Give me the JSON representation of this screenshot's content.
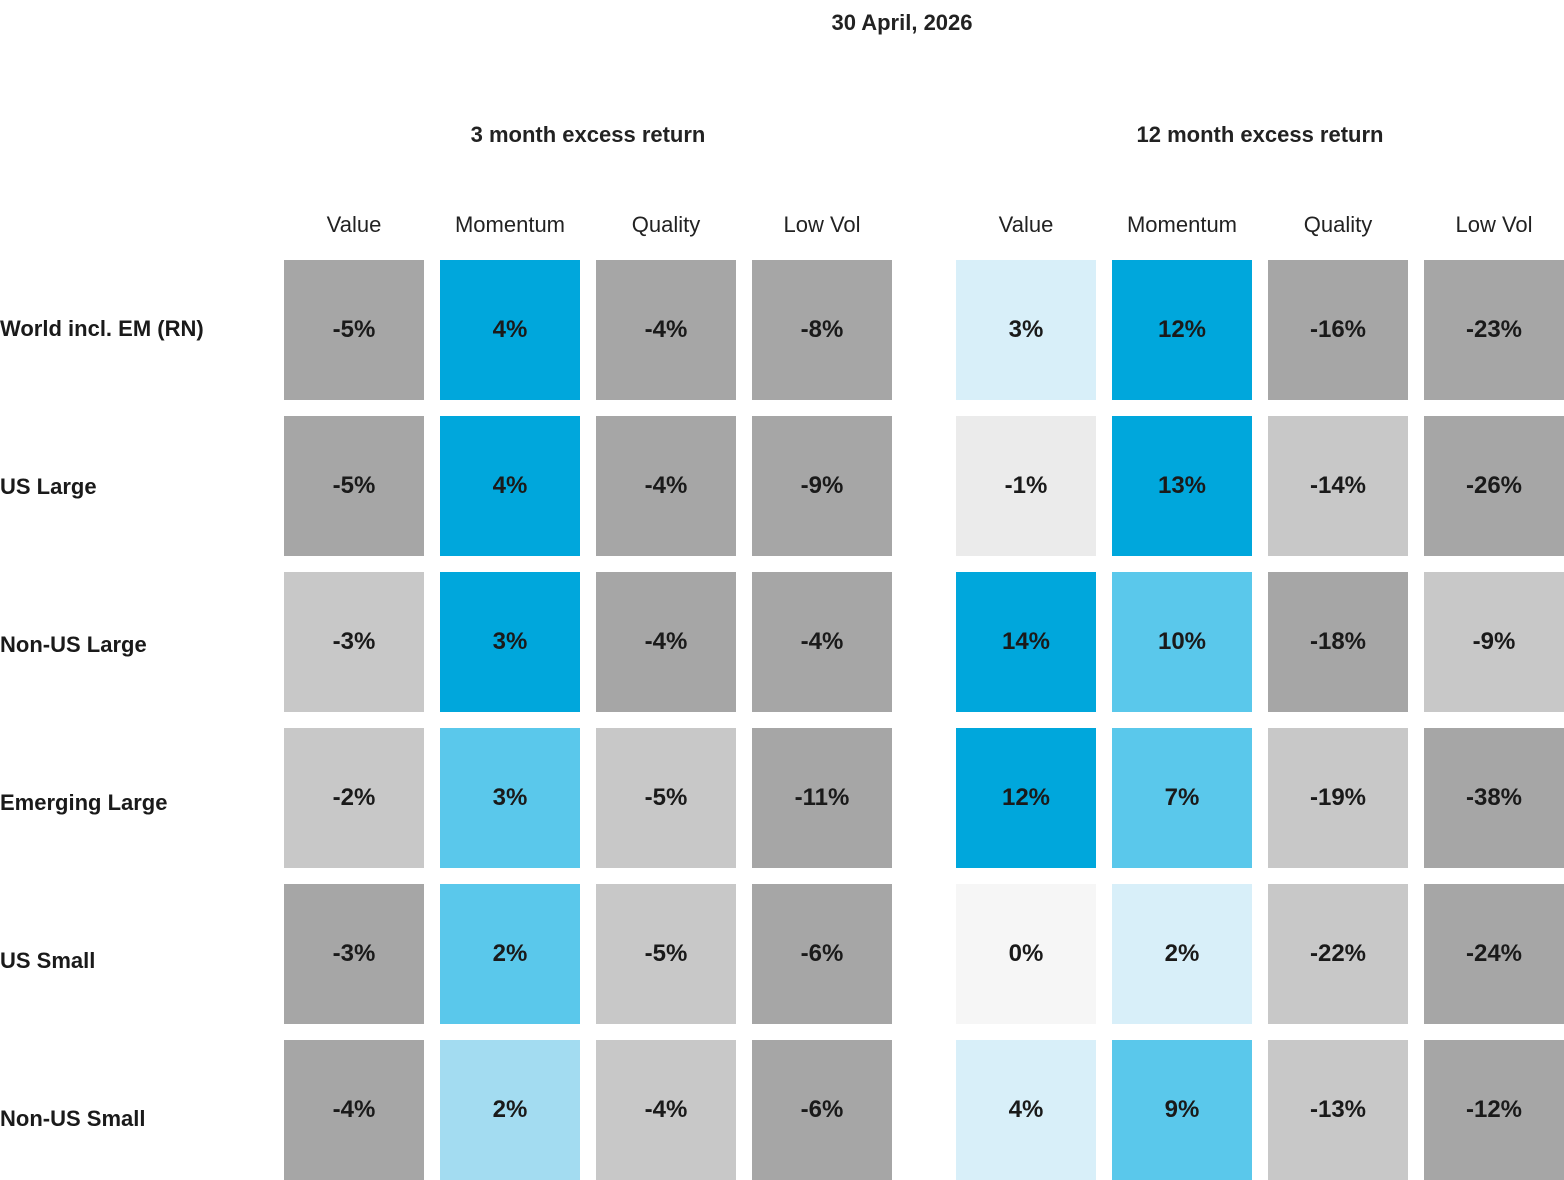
{
  "chart_data": {
    "type": "heatmap",
    "title": "30 April, 2026",
    "panels": [
      {
        "title": "3 month excess return",
        "columns": [
          "Value",
          "Momentum",
          "Quality",
          "Low Vol"
        ],
        "rows": [
          {
            "label": "World incl. EM (RN)",
            "values": [
              -5,
              4,
              -4,
              -8
            ],
            "labels": [
              "-5%",
              "4%",
              "-4%",
              "-8%"
            ],
            "colors": [
              "#a6a6a6",
              "#00a7dc",
              "#a6a6a6",
              "#a6a6a6"
            ]
          },
          {
            "label": "US Large",
            "values": [
              -5,
              4,
              -4,
              -9
            ],
            "labels": [
              "-5%",
              "4%",
              "-4%",
              "-9%"
            ],
            "colors": [
              "#a6a6a6",
              "#00a7dc",
              "#a6a6a6",
              "#a6a6a6"
            ]
          },
          {
            "label": "Non-US Large",
            "values": [
              -3,
              3,
              -4,
              -4
            ],
            "labels": [
              "-3%",
              "3%",
              "-4%",
              "-4%"
            ],
            "colors": [
              "#c8c8c8",
              "#00a7dc",
              "#a6a6a6",
              "#a6a6a6"
            ]
          },
          {
            "label": "Emerging Large",
            "values": [
              -2,
              3,
              -5,
              -11
            ],
            "labels": [
              "-2%",
              "3%",
              "-5%",
              "-11%"
            ],
            "colors": [
              "#c8c8c8",
              "#5ac8eb",
              "#c8c8c8",
              "#a6a6a6"
            ]
          },
          {
            "label": "US Small",
            "values": [
              -3,
              2,
              -5,
              -6
            ],
            "labels": [
              "-3%",
              "2%",
              "-5%",
              "-6%"
            ],
            "colors": [
              "#a6a6a6",
              "#5ac8eb",
              "#c8c8c8",
              "#a6a6a6"
            ]
          },
          {
            "label": "Non-US Small",
            "values": [
              -4,
              2,
              -4,
              -6
            ],
            "labels": [
              "-4%",
              "2%",
              "-4%",
              "-6%"
            ],
            "colors": [
              "#a6a6a6",
              "#a3dcf1",
              "#c8c8c8",
              "#a6a6a6"
            ]
          }
        ]
      },
      {
        "title": "12 month excess return",
        "columns": [
          "Value",
          "Momentum",
          "Quality",
          "Low Vol"
        ],
        "rows": [
          {
            "label": "World incl. EM (RN)",
            "values": [
              3,
              12,
              -16,
              -23
            ],
            "labels": [
              "3%",
              "12%",
              "-16%",
              "-23%"
            ],
            "colors": [
              "#d8eff9",
              "#00a7dc",
              "#a6a6a6",
              "#a6a6a6"
            ]
          },
          {
            "label": "US Large",
            "values": [
              -1,
              13,
              -14,
              -26
            ],
            "labels": [
              "-1%",
              "13%",
              "-14%",
              "-26%"
            ],
            "colors": [
              "#ebebeb",
              "#00a7dc",
              "#c8c8c8",
              "#a6a6a6"
            ]
          },
          {
            "label": "Non-US Large",
            "values": [
              14,
              10,
              -18,
              -9
            ],
            "labels": [
              "14%",
              "10%",
              "-18%",
              "-9%"
            ],
            "colors": [
              "#00a7dc",
              "#5ac8eb",
              "#a6a6a6",
              "#c8c8c8"
            ]
          },
          {
            "label": "Emerging Large",
            "values": [
              12,
              7,
              -19,
              -38
            ],
            "labels": [
              "12%",
              "7%",
              "-19%",
              "-38%"
            ],
            "colors": [
              "#00a7dc",
              "#5ac8eb",
              "#c8c8c8",
              "#a6a6a6"
            ]
          },
          {
            "label": "US Small",
            "values": [
              0,
              2,
              -22,
              -24
            ],
            "labels": [
              "0%",
              "2%",
              "-22%",
              "-24%"
            ],
            "colors": [
              "#f6f6f6",
              "#d8eff9",
              "#c8c8c8",
              "#a6a6a6"
            ]
          },
          {
            "label": "Non-US Small",
            "values": [
              4,
              9,
              -13,
              -12
            ],
            "labels": [
              "4%",
              "9%",
              "-13%",
              "-12%"
            ],
            "colors": [
              "#d8eff9",
              "#5ac8eb",
              "#c8c8c8",
              "#a6a6a6"
            ]
          }
        ]
      }
    ]
  }
}
